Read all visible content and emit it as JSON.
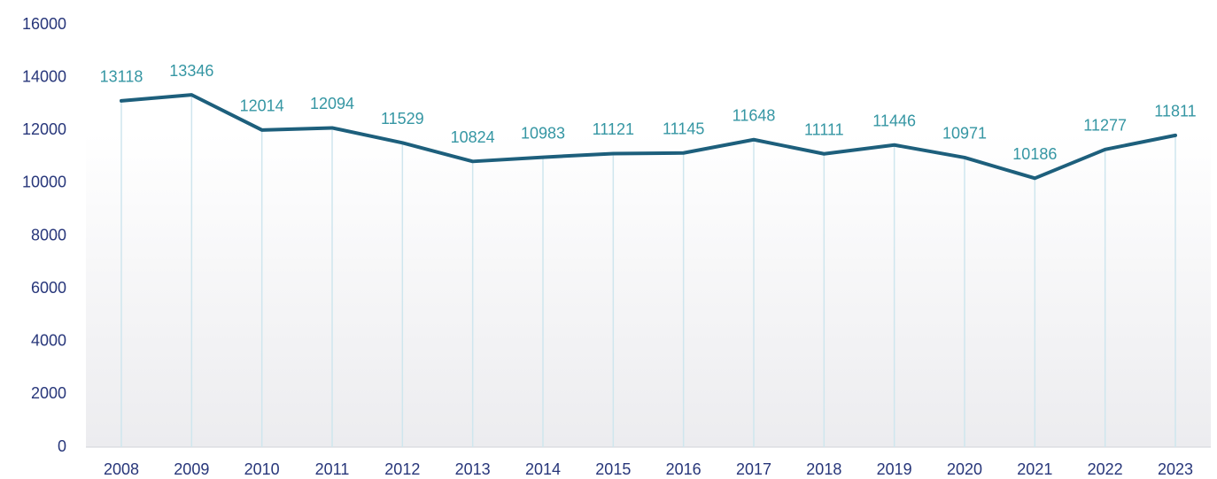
{
  "chart_data": {
    "type": "line",
    "categories": [
      "2008",
      "2009",
      "2010",
      "2011",
      "2012",
      "2013",
      "2014",
      "2015",
      "2016",
      "2017",
      "2018",
      "2019",
      "2020",
      "2021",
      "2022",
      "2023"
    ],
    "series": [
      {
        "color": "#1d5f7c",
        "values": [
          13118,
          13346,
          12014,
          12094,
          11529,
          10824,
          10983,
          11121,
          11145,
          11648,
          11111,
          11446,
          10971,
          10186,
          11277,
          11811
        ]
      }
    ],
    "ylim": [
      0,
      16000
    ],
    "yticks": [
      0,
      2000,
      4000,
      6000,
      8000,
      10000,
      12000,
      14000,
      16000
    ]
  }
}
